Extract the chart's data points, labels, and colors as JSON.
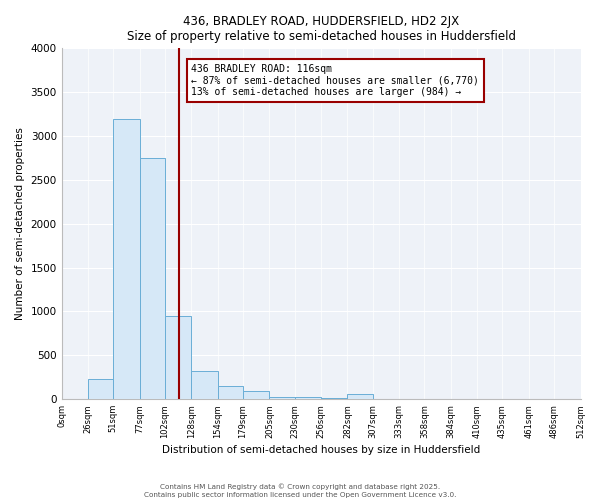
{
  "title": "436, BRADLEY ROAD, HUDDERSFIELD, HD2 2JX",
  "subtitle": "Size of property relative to semi-detached houses in Huddersfield",
  "xlabel": "Distribution of semi-detached houses by size in Huddersfield",
  "ylabel": "Number of semi-detached properties",
  "bin_edges": [
    0,
    26,
    51,
    77,
    102,
    128,
    154,
    179,
    205,
    230,
    256,
    282,
    307,
    333,
    358,
    384,
    410,
    435,
    461,
    486,
    512
  ],
  "bin_counts": [
    0,
    230,
    3200,
    2750,
    950,
    320,
    155,
    95,
    30,
    20,
    10,
    55,
    5,
    5,
    3,
    2,
    0,
    2,
    0,
    0
  ],
  "bar_face_color": "#d6e8f7",
  "bar_edge_color": "#6aaed6",
  "vline_x": 116,
  "vline_color": "#990000",
  "annotation_title": "436 BRADLEY ROAD: 116sqm",
  "annotation_line1": "← 87% of semi-detached houses are smaller (6,770)",
  "annotation_line2": "13% of semi-detached houses are larger (984) →",
  "annotation_box_color": "#990000",
  "ylim": [
    0,
    4000
  ],
  "yticks": [
    0,
    500,
    1000,
    1500,
    2000,
    2500,
    3000,
    3500,
    4000
  ],
  "tick_labels": [
    "0sqm",
    "26sqm",
    "51sqm",
    "77sqm",
    "102sqm",
    "128sqm",
    "154sqm",
    "179sqm",
    "205sqm",
    "230sqm",
    "256sqm",
    "282sqm",
    "307sqm",
    "333sqm",
    "358sqm",
    "384sqm",
    "410sqm",
    "435sqm",
    "461sqm",
    "486sqm",
    "512sqm"
  ],
  "footer1": "Contains HM Land Registry data © Crown copyright and database right 2025.",
  "footer2": "Contains public sector information licensed under the Open Government Licence v3.0.",
  "bg_color": "#ffffff",
  "plot_bg_color": "#eef2f8"
}
